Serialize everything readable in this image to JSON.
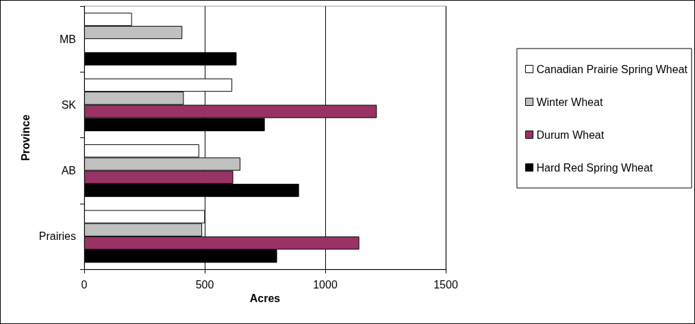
{
  "chart_data": {
    "type": "bar",
    "orientation": "horizontal",
    "xlabel": "Acres",
    "ylabel": "Province",
    "categories": [
      "MB",
      "SK",
      "AB",
      "Prairies"
    ],
    "series": [
      {
        "name": "Canadian Prairie Spring Wheat",
        "color": "#ffffff",
        "values": [
          198,
          614,
          477,
          501
        ]
      },
      {
        "name": "Winter Wheat",
        "color": "#c0c0c0",
        "values": [
          407,
          413,
          648,
          489
        ]
      },
      {
        "name": "Durum Wheat",
        "color": "#993366",
        "values": [
          null,
          1214,
          618,
          1141
        ]
      },
      {
        "name": "Hard Red Spring Wheat",
        "color": "#000000",
        "values": [
          632,
          749,
          891,
          800
        ]
      }
    ],
    "xlim": [
      0,
      1500
    ],
    "xticks": [
      0,
      500,
      1000,
      1500
    ],
    "grid": "x",
    "legend": "right"
  }
}
